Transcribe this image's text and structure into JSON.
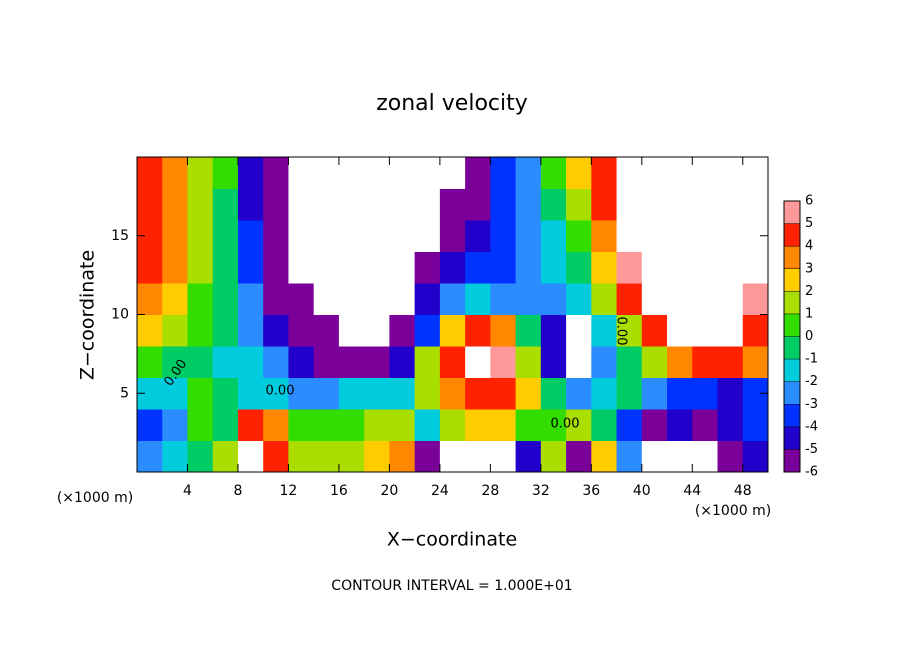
{
  "chart_data": {
    "type": "contour",
    "title": "zonal velocity",
    "x_label": "X−coordinate",
    "y_label": "Z−coordinate",
    "unit_labels": [
      "(×1000 m)",
      "(×1000 m)"
    ],
    "footer": "CONTOUR INTERVAL = 1.000E+01",
    "contour_labels": [
      "0.00",
      "0.00",
      "0.00",
      "0.00"
    ],
    "xlim": [
      0,
      50
    ],
    "ylim": [
      0,
      20
    ],
    "xticks": [
      4,
      8,
      12,
      16,
      20,
      24,
      28,
      32,
      36,
      40,
      44,
      48
    ],
    "yticks": [
      5,
      10,
      15
    ],
    "x": [
      1,
      3,
      5,
      7,
      9,
      11,
      13,
      15,
      17,
      19,
      21,
      23,
      25,
      27,
      29,
      31,
      33,
      35,
      37,
      39,
      41,
      43,
      45,
      47,
      49
    ],
    "y": [
      1,
      3,
      5,
      7,
      9,
      11,
      13,
      15,
      17,
      19
    ],
    "z": [
      [
        -2,
        -1,
        0,
        2,
        8,
        5,
        2,
        2,
        2,
        3,
        4,
        -5,
        -8,
        -8,
        -7,
        -4,
        2,
        -6,
        3,
        -2,
        -7,
        -8,
        -7,
        -6,
        -4
      ],
      [
        -3,
        -2,
        1,
        0,
        5,
        4,
        1,
        1,
        1,
        2,
        2,
        -1,
        2,
        3,
        3,
        1,
        1,
        2,
        0,
        -3,
        -6,
        -4,
        -5,
        -4,
        -3
      ],
      [
        -1,
        -1,
        1,
        0,
        -1,
        -1,
        -2,
        -2,
        -1,
        -1,
        -1,
        2,
        4,
        5,
        5,
        3,
        0,
        -2,
        -1,
        0,
        -2,
        -3,
        -3,
        -4,
        -3
      ],
      [
        1,
        0,
        0,
        -1,
        -1,
        -2,
        -4,
        -5,
        -5,
        -5,
        -4,
        2,
        5,
        8,
        6,
        2,
        -4,
        -8,
        -2,
        0,
        2,
        4,
        5,
        5,
        4
      ],
      [
        3,
        2,
        1,
        0,
        -2,
        -4,
        -5,
        -6,
        -7,
        -8,
        -6,
        -3,
        3,
        5,
        4,
        0,
        -4,
        -8,
        -1,
        2,
        5,
        7,
        8,
        8,
        5
      ],
      [
        4,
        3,
        1,
        0,
        -2,
        -5,
        -6,
        -8,
        -8,
        -8,
        -7,
        -4,
        -2,
        -1,
        -2,
        -2,
        -2,
        -1,
        2,
        5,
        8,
        8,
        8,
        8,
        6
      ],
      [
        5,
        4,
        2,
        0,
        -3,
        -5,
        -7,
        -8,
        -8,
        -8,
        -7,
        -6,
        -4,
        -3,
        -3,
        -2,
        -1,
        0,
        3,
        6,
        8,
        8,
        8,
        8,
        8
      ],
      [
        5,
        4,
        2,
        0,
        -3,
        -5,
        -8,
        -8,
        -8,
        -8,
        -8,
        -7,
        -5,
        -4,
        -3,
        -2,
        -1,
        1,
        4,
        7,
        8,
        8,
        8,
        8,
        8
      ],
      [
        5,
        4,
        2,
        0,
        -4,
        -6,
        -8,
        -8,
        -8,
        -8,
        -8,
        -7,
        -6,
        -5,
        -3,
        -2,
        0,
        2,
        5,
        8,
        8,
        8,
        8,
        8,
        8
      ],
      [
        5,
        4,
        2,
        1,
        -4,
        -6,
        -8,
        -8,
        -8,
        -8,
        -8,
        -8,
        -7,
        -5,
        -3,
        -2,
        1,
        3,
        5,
        8,
        8,
        8,
        8,
        8,
        8
      ]
    ],
    "levels": [
      -6,
      -5,
      -4,
      -3,
      -2,
      -1,
      0,
      1,
      2,
      3,
      4,
      5,
      6
    ],
    "colors": [
      "#7a0099",
      "#2200cc",
      "#0033ff",
      "#2a8cff",
      "#00ccdd",
      "#00cc66",
      "#33dd00",
      "#aadd00",
      "#ffcc00",
      "#ff8800",
      "#ff2200",
      "#ff9999"
    ]
  }
}
